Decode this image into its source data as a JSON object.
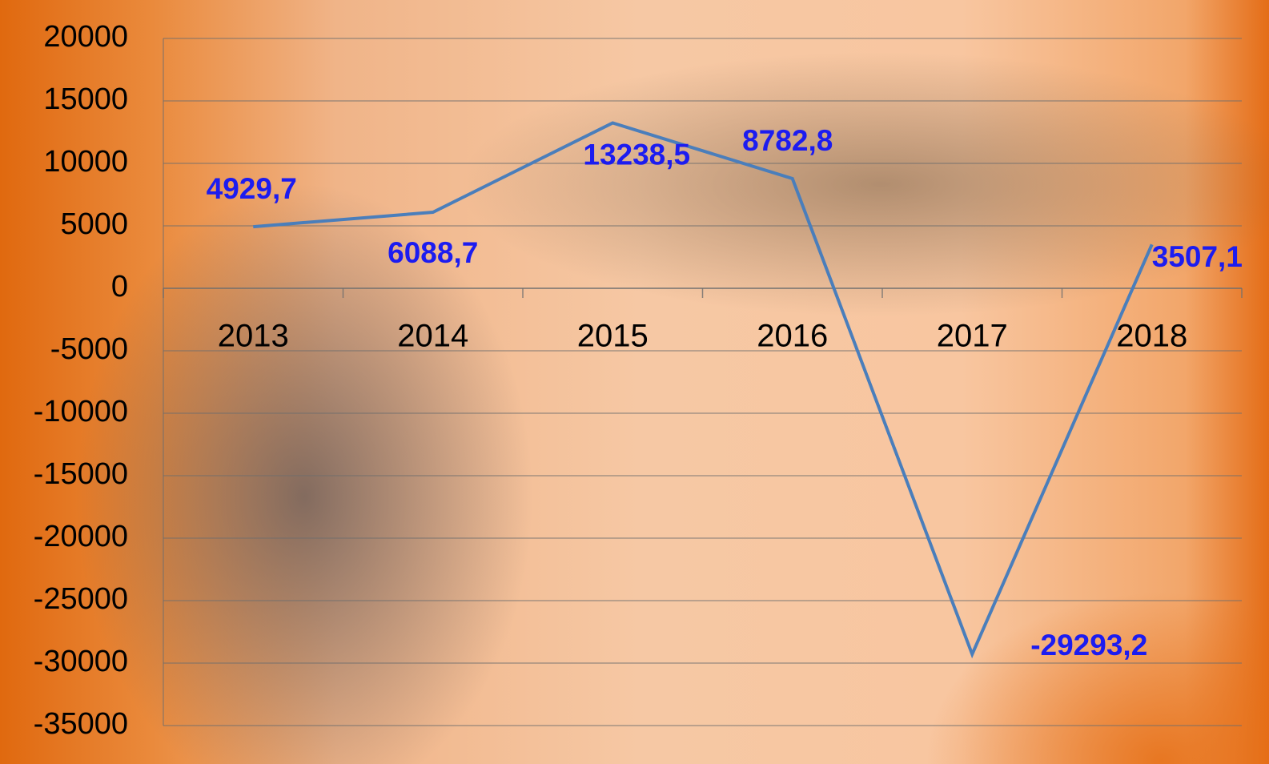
{
  "chart_data": {
    "type": "line",
    "categories": [
      "2013",
      "2014",
      "2015",
      "2016",
      "2017",
      "2018"
    ],
    "values": [
      4929.7,
      6088.7,
      13238.5,
      8782.8,
      -29293.2,
      3507.1
    ],
    "value_labels": [
      "4929,7",
      "6088,7",
      "13238,5",
      "8782,8",
      "-29293,2",
      "3507,1"
    ],
    "color": "#4a7ebb",
    "ylim": [
      -35000,
      20000
    ],
    "yticks": [
      -35000,
      -30000,
      -25000,
      -20000,
      -15000,
      -10000,
      -5000,
      0,
      5000,
      10000,
      15000,
      20000
    ],
    "grid": true
  }
}
